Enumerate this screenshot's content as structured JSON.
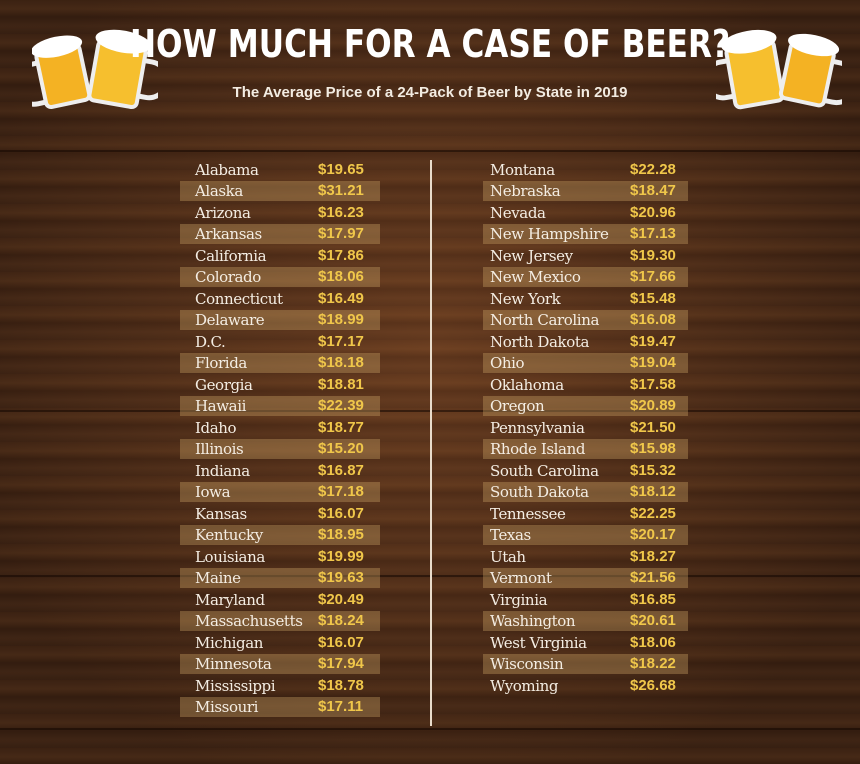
{
  "header": {
    "title": "HOW MUCH FOR A CASE OF BEER?",
    "subtitle": "The Average Price of a 24-Pack of Beer by State in 2019",
    "icons": [
      "beer-mugs-icon",
      "beer-mugs-icon"
    ]
  },
  "colors": {
    "background": "#5a331c",
    "state_text": "#f4ede3",
    "price_text": "#f0c74a",
    "row_highlight": "#9a7448"
  },
  "chart_data": {
    "type": "table",
    "title": "HOW MUCH FOR A CASE OF BEER?",
    "subtitle": "The Average Price of a 24-Pack of Beer by State in 2019",
    "columns": [
      {
        "rows": [
          [
            "Alabama",
            "$19.65"
          ],
          [
            "Alaska",
            "$31.21"
          ],
          [
            "Arizona",
            "$16.23"
          ],
          [
            "Arkansas",
            "$17.97"
          ],
          [
            "California",
            "$17.86"
          ],
          [
            "Colorado",
            "$18.06"
          ],
          [
            "Connecticut",
            "$16.49"
          ],
          [
            "Delaware",
            "$18.99"
          ],
          [
            "D.C.",
            "$17.17"
          ],
          [
            "Florida",
            "$18.18"
          ],
          [
            "Georgia",
            "$18.81"
          ],
          [
            "Hawaii",
            "$22.39"
          ],
          [
            "Idaho",
            "$18.77"
          ],
          [
            "Illinois",
            "$15.20"
          ],
          [
            "Indiana",
            "$16.87"
          ],
          [
            "Iowa",
            "$17.18"
          ],
          [
            "Kansas",
            "$16.07"
          ],
          [
            "Kentucky",
            "$18.95"
          ],
          [
            "Louisiana",
            "$19.99"
          ],
          [
            "Maine",
            "$19.63"
          ],
          [
            "Maryland",
            "$20.49"
          ],
          [
            "Massachusetts",
            "$18.24"
          ],
          [
            "Michigan",
            "$16.07"
          ],
          [
            "Minnesota",
            "$17.94"
          ],
          [
            "Mississippi",
            "$18.78"
          ],
          [
            "Missouri",
            "$17.11"
          ]
        ]
      },
      {
        "rows": [
          [
            "Montana",
            "$22.28"
          ],
          [
            "Nebraska",
            "$18.47"
          ],
          [
            "Nevada",
            "$20.96"
          ],
          [
            "New Hampshire",
            "$17.13"
          ],
          [
            "New Jersey",
            "$19.30"
          ],
          [
            "New Mexico",
            "$17.66"
          ],
          [
            "New York",
            "$15.48"
          ],
          [
            "North Carolina",
            "$16.08"
          ],
          [
            "North Dakota",
            "$19.47"
          ],
          [
            "Ohio",
            "$19.04"
          ],
          [
            "Oklahoma",
            "$17.58"
          ],
          [
            "Oregon",
            "$20.89"
          ],
          [
            "Pennsylvania",
            "$21.50"
          ],
          [
            "Rhode Island",
            "$15.98"
          ],
          [
            "South Carolina",
            "$15.32"
          ],
          [
            "South Dakota",
            "$18.12"
          ],
          [
            "Tennessee",
            "$22.25"
          ],
          [
            "Texas",
            "$20.17"
          ],
          [
            "Utah",
            "$18.27"
          ],
          [
            "Vermont",
            "$21.56"
          ],
          [
            "Virginia",
            "$16.85"
          ],
          [
            "Washington",
            "$20.61"
          ],
          [
            "West Virginia",
            "$18.06"
          ],
          [
            "Wisconsin",
            "$18.22"
          ],
          [
            "Wyoming",
            "$26.68"
          ]
        ]
      }
    ]
  }
}
